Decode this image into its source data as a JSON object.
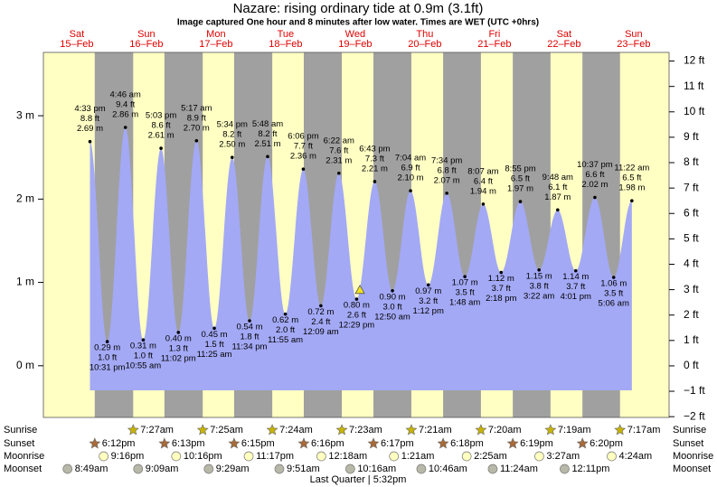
{
  "chart_data": {
    "type": "tide",
    "title": "Nazare: rising  ordinary tide at 0.9m (3.1ft)",
    "subtitle": "Image captured One hour and 8 minutes after low water. Times are WET (UTC +0hrs)",
    "days": [
      {
        "weekday": "Sat",
        "date": "15–Feb"
      },
      {
        "weekday": "Sun",
        "date": "16–Feb"
      },
      {
        "weekday": "Mon",
        "date": "17–Feb"
      },
      {
        "weekday": "Tue",
        "date": "18–Feb"
      },
      {
        "weekday": "Wed",
        "date": "19–Feb"
      },
      {
        "weekday": "Thu",
        "date": "20–Feb"
      },
      {
        "weekday": "Fri",
        "date": "21–Feb"
      },
      {
        "weekday": "Sat",
        "date": "22–Feb"
      },
      {
        "weekday": "Sun",
        "date": "23–Feb"
      }
    ],
    "xlim": [
      0.5,
      216.2
    ],
    "ylim": [
      -0.62,
      3.76
    ],
    "yticks": [
      {
        "value": 0,
        "label": "0 m"
      },
      {
        "value": 1,
        "label": "1 m"
      },
      {
        "value": 2,
        "label": "2 m"
      },
      {
        "value": 3,
        "label": "3 m"
      }
    ],
    "y2lim": [
      -2.03,
      12.34
    ],
    "y2ticks": [
      {
        "value": -2,
        "label": "−2 ft"
      },
      {
        "value": -1,
        "label": "−1 ft"
      },
      {
        "value": 0,
        "label": "0 ft"
      },
      {
        "value": 1,
        "label": "1 ft"
      },
      {
        "value": 2,
        "label": "2 ft"
      },
      {
        "value": 3,
        "label": "3 ft"
      },
      {
        "value": 4,
        "label": "4 ft"
      },
      {
        "value": 5,
        "label": "5 ft"
      },
      {
        "value": 6,
        "label": "6 ft"
      },
      {
        "value": 7,
        "label": "7 ft"
      },
      {
        "value": 8,
        "label": "8 ft"
      },
      {
        "value": 9,
        "label": "9 ft"
      },
      {
        "value": 10,
        "label": "10 ft"
      },
      {
        "value": 11,
        "label": "11 ft"
      },
      {
        "value": 12,
        "label": "12 ft"
      }
    ],
    "series": [
      {
        "color": "#a3a9f5",
        "x": [
          16.55,
          22.52,
          28.77,
          34.92,
          41.05,
          47.03,
          53.28,
          59.42,
          65.57,
          71.57,
          77.8,
          83.92,
          90.1,
          96.15,
          102.37,
          108.48,
          114.72,
          120.83,
          127.07,
          133.2,
          139.57,
          145.8,
          152.12,
          158.3,
          164.92,
          171.37,
          177.8,
          184.02,
          190.62,
          197.1,
          203.37
        ],
        "values": [
          2.69,
          0.29,
          2.86,
          0.31,
          2.61,
          0.4,
          2.7,
          0.45,
          2.5,
          0.54,
          2.51,
          0.62,
          2.36,
          0.72,
          2.31,
          0.8,
          2.21,
          0.9,
          2.1,
          0.97,
          2.07,
          1.07,
          1.94,
          1.12,
          1.97,
          1.15,
          1.87,
          1.14,
          2.02,
          1.06,
          1.98
        ],
        "value_labels": [
          "2.69 m",
          "0.29 m",
          "2.86 m",
          "0.31 m",
          "2.61 m",
          "0.40 m",
          "2.70 m",
          "0.45 m",
          "2.50 m",
          "0.54 m",
          "2.51 m",
          "0.62 m",
          "2.36 m",
          "0.72 m",
          "2.31 m",
          "0.80 m",
          "2.21 m",
          "0.90 m",
          "2.10 m",
          "0.97 m",
          "2.07 m",
          "1.07 m",
          "1.94 m",
          "1.12 m",
          "1.97 m",
          "1.15 m",
          "1.87 m",
          "1.14 m",
          "2.02 m",
          "1.06 m",
          "1.98 m"
        ],
        "ft_labels": [
          "8.8 ft",
          "1.0 ft",
          "9.4 ft",
          "1.0 ft",
          "8.6 ft",
          "1.3 ft",
          "8.9 ft",
          "1.5 ft",
          "8.2 ft",
          "1.8 ft",
          "8.2 ft",
          "2.0 ft",
          "7.7 ft",
          "2.4 ft",
          "7.6 ft",
          "2.6 ft",
          "7.3 ft",
          "3.0 ft",
          "6.9 ft",
          "3.2 ft",
          "6.8 ft",
          "3.5 ft",
          "6.4 ft",
          "3.7 ft",
          "6.5 ft",
          "3.8 ft",
          "6.1 ft",
          "3.7 ft",
          "6.6 ft",
          "3.5 ft",
          "6.5 ft"
        ],
        "time_labels": [
          "4:33 pm",
          "10:31 pm",
          "4:46 am",
          "10:55 am",
          "5:03 pm",
          "11:02 pm",
          "5:17 am",
          "11:25 am",
          "5:34 pm",
          "11:34 pm",
          "5:48 am",
          "11:55 am",
          "6:06 pm",
          "12:09 am",
          "6:22 am",
          "12:29 pm",
          "6:43 pm",
          "12:50 am",
          "7:04 am",
          "1:12 pm",
          "7:34 pm",
          "1:48 am",
          "8:07 am",
          "2:18 pm",
          "8:55 pm",
          "3:22 am",
          "9:48 am",
          "4:01 pm",
          "10:37 pm",
          "5:06 am",
          "11:22 am"
        ]
      }
    ],
    "current": {
      "x": 109.62,
      "value": 0.9,
      "color": "#f0e020"
    },
    "night_color": "#a0a0a0",
    "day_color": "#ffffc4",
    "events": [
      {
        "name": "Sunrise",
        "color": "#c8b400",
        "icon": "star",
        "x": [
          31.45,
          55.42,
          79.4,
          103.38,
          127.35,
          151.33,
          175.32,
          199.28
        ],
        "labels": [
          "7:27am",
          "7:25am",
          "7:24am",
          "7:23am",
          "7:21am",
          "7:20am",
          "7:19am",
          "7:17am"
        ]
      },
      {
        "name": "Sunset",
        "color": "#a86a38",
        "icon": "star",
        "x": [
          18.2,
          42.22,
          66.25,
          90.27,
          114.28,
          138.3,
          162.32,
          186.33
        ],
        "labels": [
          "6:12pm",
          "6:13pm",
          "6:15pm",
          "6:16pm",
          "6:17pm",
          "6:18pm",
          "6:19pm",
          "6:20pm"
        ]
      },
      {
        "name": "Moonrise",
        "color": "#ffffc0",
        "icon": "circle",
        "x": [
          21.27,
          46.27,
          71.28,
          96.3,
          121.35,
          146.42,
          171.45,
          196.4
        ],
        "labels": [
          "9:16pm",
          "10:16pm",
          "11:17pm",
          "12:18am",
          "1:21am",
          "2:25am",
          "3:27am",
          "4:24am"
        ]
      },
      {
        "name": "Moonset",
        "color": "#b8b8a8",
        "icon": "circle",
        "x": [
          8.82,
          33.15,
          57.48,
          81.85,
          106.27,
          130.77,
          155.4,
          180.18
        ],
        "labels": [
          "8:49am",
          "9:09am",
          "9:29am",
          "9:51am",
          "10:16am",
          "10:46am",
          "11:24am",
          "12:11pm"
        ]
      }
    ],
    "moon_phase": "Last Quarter | 5:32pm"
  }
}
